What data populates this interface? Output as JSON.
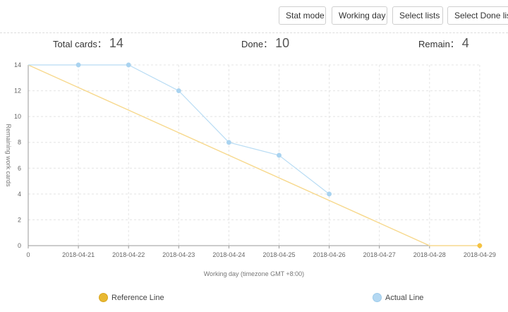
{
  "toolbar": {
    "buttons": [
      "Stat mode",
      "Working day",
      "Select lists",
      "Select Done list"
    ]
  },
  "stats": {
    "total_label": "Total cards：",
    "total_value": "14",
    "done_label": "Done：",
    "done_value": "10",
    "remain_label": "Remain：",
    "remain_value": "4"
  },
  "chart_data": {
    "type": "line",
    "categories": [
      "0",
      "2018-04-21",
      "2018-04-22",
      "2018-04-23",
      "2018-04-24",
      "2018-04-25",
      "2018-04-26",
      "2018-04-27",
      "2018-04-28",
      "2018-04-29"
    ],
    "xlabel": "Working day (timezone GMT +8:00)",
    "ylabel": "Remaining work cards",
    "ylim": [
      0,
      14
    ],
    "yticks": [
      0,
      2,
      4,
      6,
      8,
      10,
      12,
      14
    ],
    "grid": true,
    "legend_position": "bottom",
    "series": [
      {
        "name": "Reference Line",
        "color": "#f5c342",
        "line_color": "#f7d98e",
        "values": [
          14,
          12.25,
          10.5,
          8.75,
          7,
          5.25,
          3.5,
          1.75,
          0,
          0
        ],
        "markers": [
          false,
          false,
          false,
          false,
          false,
          false,
          false,
          false,
          false,
          true
        ],
        "note_values_are_linear": true
      },
      {
        "name": "Actual Line",
        "color": "#a9d3f0",
        "line_color": "#b8dcf4",
        "values": [
          14,
          14,
          14,
          12,
          8,
          7,
          4,
          null,
          null,
          null
        ],
        "markers": [
          false,
          true,
          true,
          true,
          true,
          true,
          true,
          false,
          false,
          false
        ]
      }
    ]
  }
}
